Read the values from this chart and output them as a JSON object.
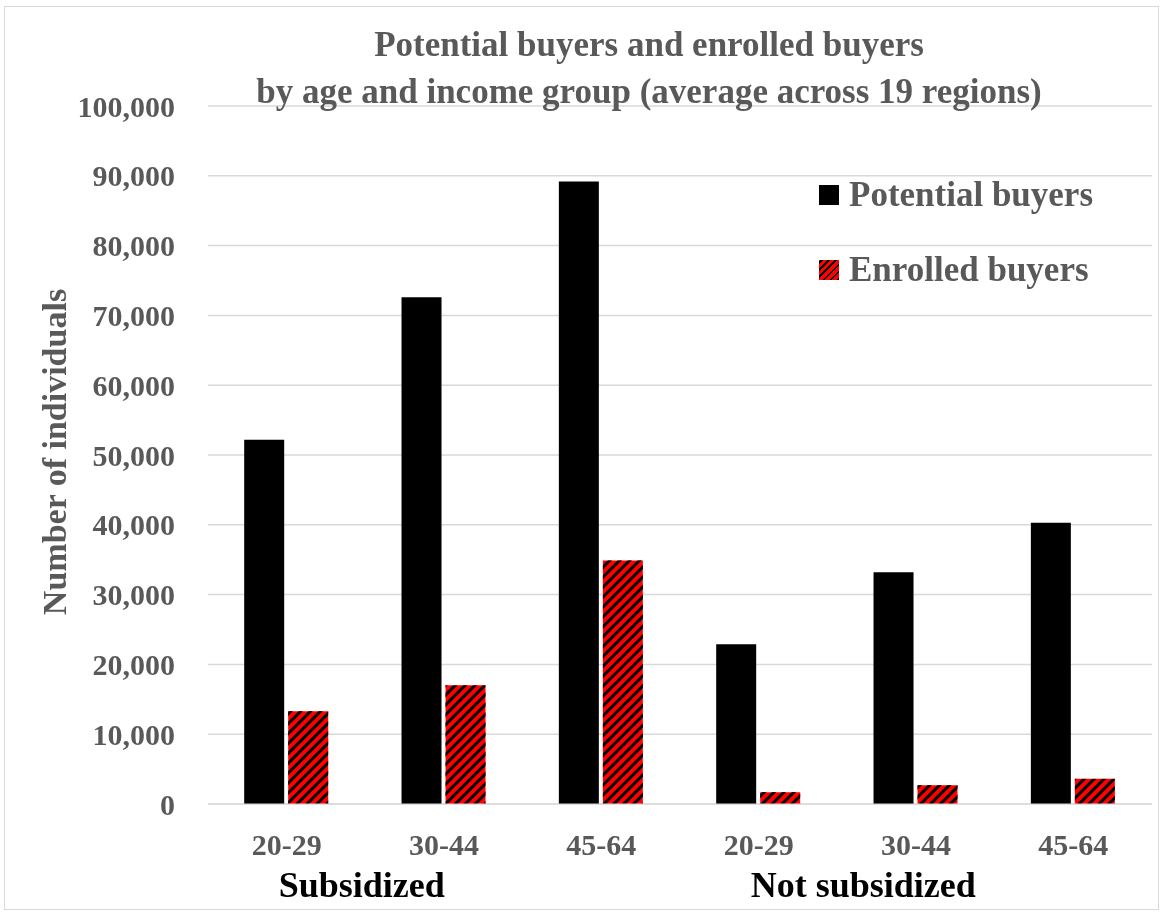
{
  "chart_data": {
    "type": "bar",
    "title": "Potential buyers and enrolled buyers\nby age and income group (average across 19 regions)",
    "ylabel": "Number of individuals",
    "categories": [
      "20-29",
      "30-44",
      "45-64",
      "20-29",
      "30-44",
      "45-64"
    ],
    "series": [
      {
        "name": "Potential buyers",
        "color": "#000000",
        "values": [
          52200,
          72600,
          89200,
          22900,
          33200,
          40300
        ]
      },
      {
        "name": "Enrolled buyers",
        "color": "#ff0000",
        "values": [
          13300,
          17000,
          34900,
          1700,
          2700,
          3600
        ]
      }
    ],
    "ylim": [
      0,
      100000
    ],
    "yticks": [
      0,
      {
        "value": 10000,
        "label": "10,000"
      },
      {
        "value": 20000,
        "label": "20,000"
      },
      {
        "value": 30000,
        "label": "30,000"
      },
      {
        "value": 40000,
        "label": "40,000"
      },
      {
        "value": 50000,
        "label": "50,000"
      },
      {
        "value": 60000,
        "label": "60,000"
      },
      {
        "value": 70000,
        "label": "70,000"
      },
      {
        "value": 80000,
        "label": "80,000"
      },
      {
        "value": 90000,
        "label": "90,000"
      },
      {
        "value": 100000,
        "label": "100,000"
      }
    ],
    "grid": "y",
    "legend": "top right",
    "annotations": [
      "Subsidized",
      "Not subsidized"
    ]
  }
}
